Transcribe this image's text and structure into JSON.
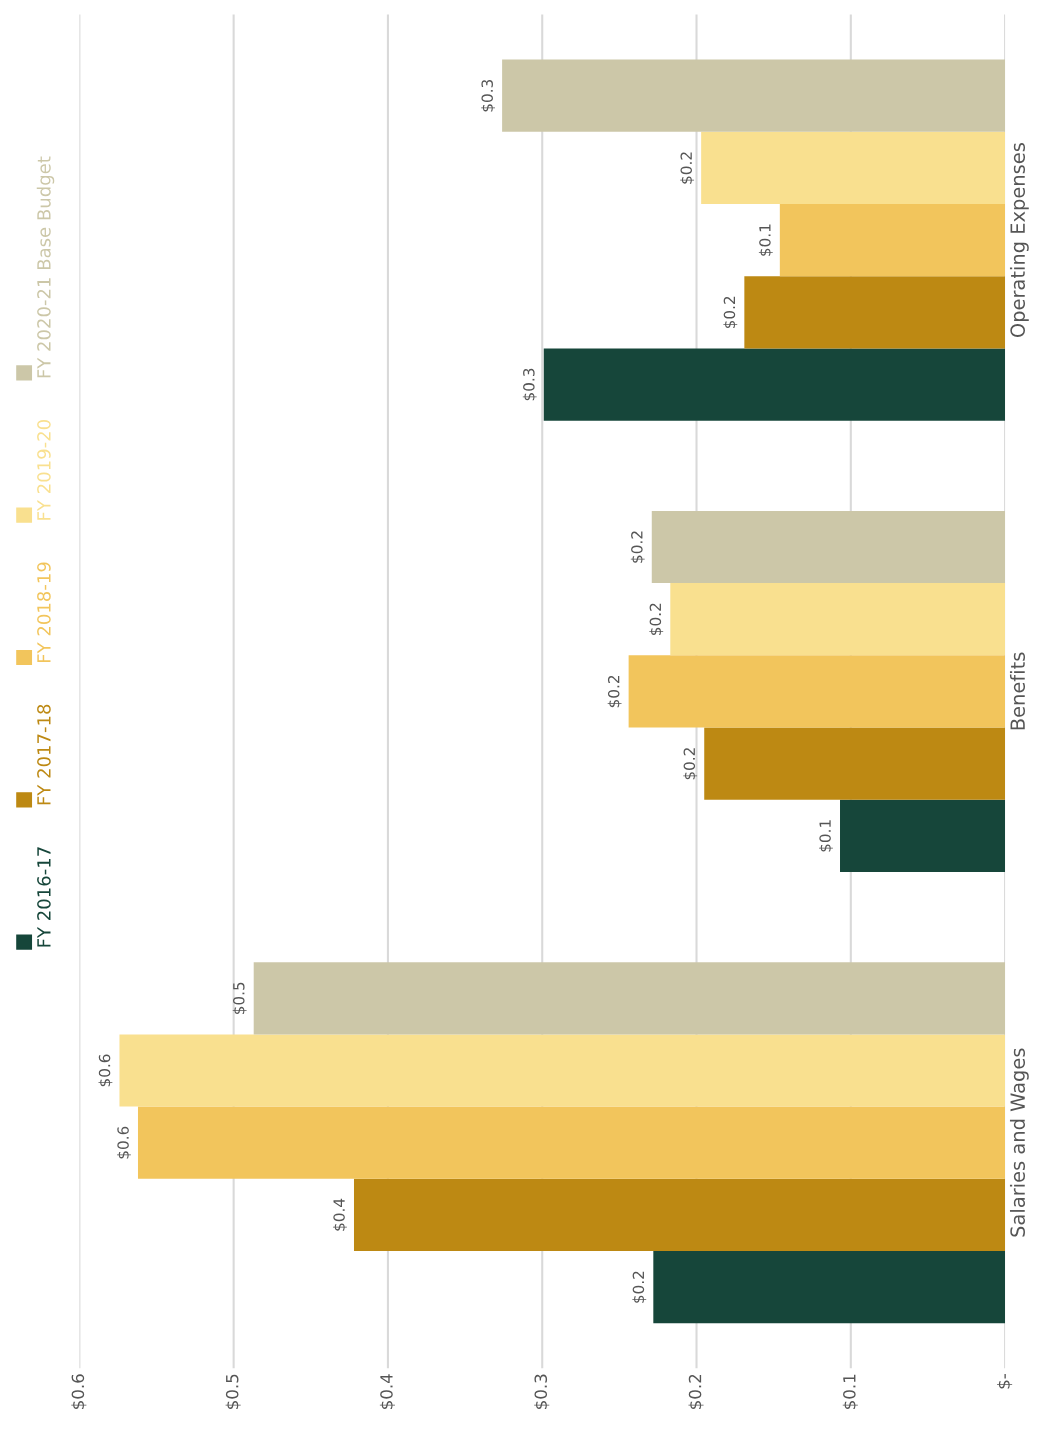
{
  "chart_data": {
    "type": "bar",
    "orientation": "horizontal",
    "categories": [
      "Operating Expenses",
      "Benefits",
      "Salaries and Wages"
    ],
    "series": [
      {
        "name": "FY 2016-17",
        "color": "#16463a",
        "values": [
          0.299,
          0.107,
          0.228
        ],
        "value_labels": [
          "$0.3",
          "$0.1",
          "$0.2"
        ]
      },
      {
        "name": "FY 2017-18",
        "color": "#bd8913",
        "values": [
          0.169,
          0.195,
          0.422
        ],
        "value_labels": [
          "$0.2",
          "$0.2",
          "$0.4"
        ]
      },
      {
        "name": "FY 2018-19",
        "color": "#f2c55c",
        "values": [
          0.146,
          0.244,
          0.562
        ],
        "value_labels": [
          "$0.1",
          "$0.2",
          "$0.6"
        ]
      },
      {
        "name": "FY 2019-20",
        "color": "#f9e08f",
        "values": [
          0.197,
          0.217,
          0.574
        ],
        "value_labels": [
          "$0.2",
          "$0.2",
          "$0.6"
        ]
      },
      {
        "name": "FY 2020-21 Base Budget",
        "color": "#ccc7a8",
        "values": [
          0.326,
          0.229,
          0.487
        ],
        "value_labels": [
          "$0.3",
          "$0.2",
          "$0.5"
        ]
      }
    ],
    "xlim": [
      0.6,
      0
    ],
    "xticks": [
      {
        "value": 0.6,
        "label": "$0.6"
      },
      {
        "value": 0.5,
        "label": "$0.5"
      },
      {
        "value": 0.4,
        "label": "$0.4"
      },
      {
        "value": 0.3,
        "label": "$0.3"
      },
      {
        "value": 0.2,
        "label": "$0.2"
      },
      {
        "value": 0.1,
        "label": "$0.1"
      },
      {
        "value": 0,
        "label": "$-"
      }
    ],
    "grid": "x",
    "legend": "left"
  }
}
